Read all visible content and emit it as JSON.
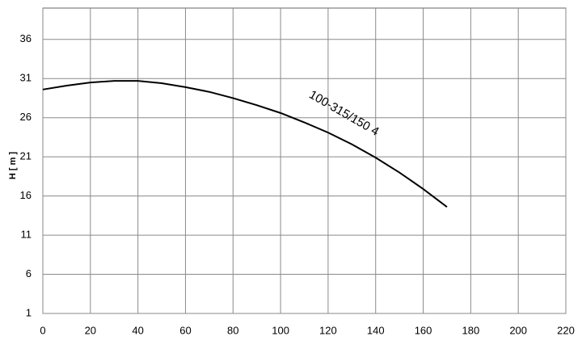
{
  "chart_data": {
    "type": "line",
    "y_label": "H [ m ]",
    "x": [
      0,
      10,
      20,
      30,
      40,
      50,
      60,
      70,
      80,
      90,
      100,
      110,
      120,
      130,
      140,
      150,
      160,
      170
    ],
    "series": [
      {
        "name": "100-315/150 4",
        "color": "#000000",
        "values": [
          29.6,
          30.1,
          30.5,
          30.7,
          30.7,
          30.4,
          29.9,
          29.3,
          28.5,
          27.6,
          26.6,
          25.4,
          24.1,
          22.6,
          20.9,
          19.0,
          16.9,
          14.6
        ]
      }
    ],
    "xlim": [
      0,
      220
    ],
    "xticks": [
      0,
      20,
      40,
      60,
      80,
      100,
      120,
      140,
      160,
      180,
      200,
      220
    ],
    "ylim": [
      1,
      40
    ],
    "yticks": [
      1,
      6,
      11,
      16,
      21,
      26,
      31,
      36
    ],
    "grid": true
  }
}
